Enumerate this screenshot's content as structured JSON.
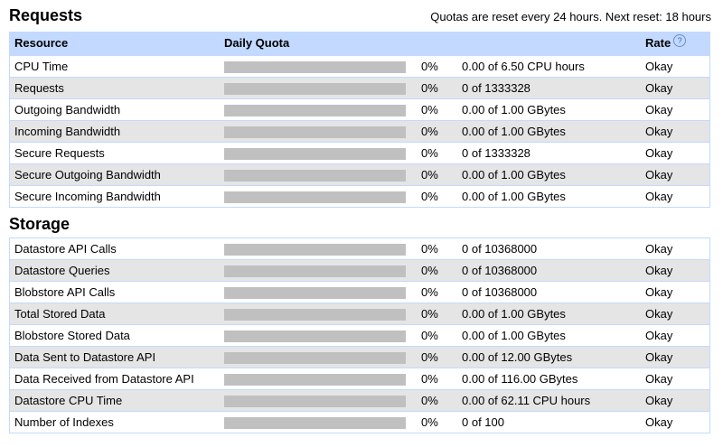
{
  "requests": {
    "title": "Requests",
    "reset_note": "Quotas are reset every 24 hours. Next reset: 18 hours",
    "headers": {
      "resource": "Resource",
      "daily_quota": "Daily Quota",
      "rate": "Rate",
      "help_icon": "?"
    },
    "rows": [
      {
        "name": "CPU Time",
        "pct": "0%",
        "pct_value": 0,
        "usage": "0.00 of 6.50 CPU hours",
        "rate": "Okay"
      },
      {
        "name": "Requests",
        "pct": "0%",
        "pct_value": 0,
        "usage": "0 of 1333328",
        "rate": "Okay"
      },
      {
        "name": "Outgoing Bandwidth",
        "pct": "0%",
        "pct_value": 0,
        "usage": "0.00 of 1.00 GBytes",
        "rate": "Okay"
      },
      {
        "name": "Incoming Bandwidth",
        "pct": "0%",
        "pct_value": 0,
        "usage": "0.00 of 1.00 GBytes",
        "rate": "Okay"
      },
      {
        "name": "Secure Requests",
        "pct": "0%",
        "pct_value": 0,
        "usage": "0 of 1333328",
        "rate": "Okay"
      },
      {
        "name": "Secure Outgoing Bandwidth",
        "pct": "0%",
        "pct_value": 0,
        "usage": "0.00 of 1.00 GBytes",
        "rate": "Okay"
      },
      {
        "name": "Secure Incoming Bandwidth",
        "pct": "0%",
        "pct_value": 0,
        "usage": "0.00 of 1.00 GBytes",
        "rate": "Okay"
      }
    ]
  },
  "storage": {
    "title": "Storage",
    "rows": [
      {
        "name": "Datastore API Calls",
        "pct": "0%",
        "pct_value": 0,
        "usage": "0 of 10368000",
        "rate": "Okay"
      },
      {
        "name": "Datastore Queries",
        "pct": "0%",
        "pct_value": 0,
        "usage": "0 of 10368000",
        "rate": "Okay"
      },
      {
        "name": "Blobstore API Calls",
        "pct": "0%",
        "pct_value": 0,
        "usage": "0 of 10368000",
        "rate": "Okay"
      },
      {
        "name": "Total Stored Data",
        "pct": "0%",
        "pct_value": 0,
        "usage": "0.00 of 1.00 GBytes",
        "rate": "Okay"
      },
      {
        "name": "Blobstore Stored Data",
        "pct": "0%",
        "pct_value": 0,
        "usage": "0.00 of 1.00 GBytes",
        "rate": "Okay"
      },
      {
        "name": "Data Sent to Datastore API",
        "pct": "0%",
        "pct_value": 0,
        "usage": "0.00 of 12.00 GBytes",
        "rate": "Okay"
      },
      {
        "name": "Data Received from Datastore API",
        "pct": "0%",
        "pct_value": 0,
        "usage": "0.00 of 116.00 GBytes",
        "rate": "Okay"
      },
      {
        "name": "Datastore CPU Time",
        "pct": "0%",
        "pct_value": 0,
        "usage": "0.00 of 62.11 CPU hours",
        "rate": "Okay"
      },
      {
        "name": "Number of Indexes",
        "pct": "0%",
        "pct_value": 0,
        "usage": "0 of 100",
        "rate": "Okay"
      }
    ]
  },
  "colors": {
    "header_bg": "#c3d9ff",
    "alt_row_bg": "#e5e5e5",
    "bar_bg": "#c0c0c0",
    "bar_fill": "#4a7ec4"
  }
}
